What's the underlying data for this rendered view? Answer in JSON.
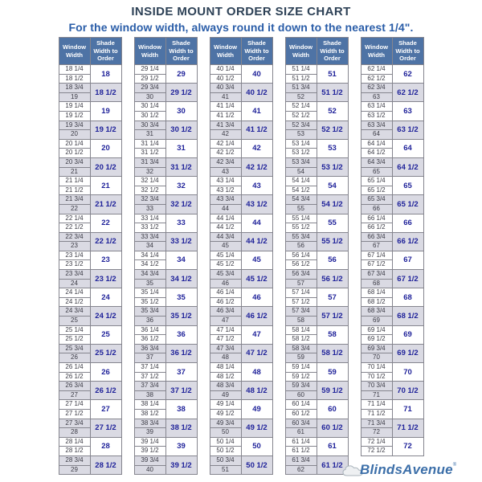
{
  "title": "INSIDE MOUNT ORDER SIZE CHART",
  "subtitle": "For the window width, always round it down to the nearest 1/4\".",
  "logo": {
    "text": "BlindsAvenue",
    "mark": "®"
  },
  "colors": {
    "title_text": "#2d4156",
    "subtitle_text": "#2a5da8",
    "header_bg": "#4e73a5",
    "header_text": "#ffffff",
    "alt_row_bg": "#dadae3",
    "window_text": "#3b3b45",
    "shade_text": "#20239a",
    "border": "#85858e",
    "logo_blue": "#3c6fa9"
  },
  "chart_data": {
    "type": "table",
    "title": "INSIDE MOUNT ORDER SIZE CHART",
    "subtitle": "For the window width, always round it down to the nearest 1/4\".",
    "col_headers": [
      "Window Width",
      "Shade Width to Order"
    ],
    "layout": "5 column groups; each shade value spans two window-width rows; pairs alternate white / lavender-gray shading",
    "groups": [
      {
        "pairs": [
          [
            "18 1/4",
            "18 1/2",
            "18"
          ],
          [
            "18 3/4",
            "19",
            "18 1/2"
          ],
          [
            "19 1/4",
            "19 1/2",
            "19"
          ],
          [
            "19 3/4",
            "20",
            "19 1/2"
          ],
          [
            "20 1/4",
            "20 1/2",
            "20"
          ],
          [
            "20 3/4",
            "21",
            "20 1/2"
          ],
          [
            "21 1/4",
            "21 1/2",
            "21"
          ],
          [
            "21 3/4",
            "22",
            "21 1/2"
          ],
          [
            "22 1/4",
            "22 1/2",
            "22"
          ],
          [
            "22 3/4",
            "23",
            "22 1/2"
          ],
          [
            "23 1/4",
            "23 1/2",
            "23"
          ],
          [
            "23 3/4",
            "24",
            "23 1/2"
          ],
          [
            "24 1/4",
            "24 1/2",
            "24"
          ],
          [
            "24 3/4",
            "25",
            "24 1/2"
          ],
          [
            "25 1/4",
            "25 1/2",
            "25"
          ],
          [
            "25 3/4",
            "26",
            "25 1/2"
          ],
          [
            "26 1/4",
            "26 1/2",
            "26"
          ],
          [
            "26 3/4",
            "27",
            "26 1/2"
          ],
          [
            "27 1/4",
            "27 1/2",
            "27"
          ],
          [
            "27 3/4",
            "28",
            "27 1/2"
          ],
          [
            "28 1/4",
            "28 1/2",
            "28"
          ],
          [
            "28 3/4",
            "29",
            "28 1/2"
          ]
        ]
      },
      {
        "pairs": [
          [
            "29 1/4",
            "29 1/2",
            "29"
          ],
          [
            "29 3/4",
            "30",
            "29 1/2"
          ],
          [
            "30 1/4",
            "30 1/2",
            "30"
          ],
          [
            "30 3/4",
            "31",
            "30 1/2"
          ],
          [
            "31 1/4",
            "31 1/2",
            "31"
          ],
          [
            "31 3/4",
            "32",
            "31 1/2"
          ],
          [
            "32 1/4",
            "32 1/2",
            "32"
          ],
          [
            "32 3/4",
            "33",
            "32 1/2"
          ],
          [
            "33 1/4",
            "33 1/2",
            "33"
          ],
          [
            "33 3/4",
            "34",
            "33 1/2"
          ],
          [
            "34 1/4",
            "34 1/2",
            "34"
          ],
          [
            "34 3/4",
            "35",
            "34 1/2"
          ],
          [
            "35 1/4",
            "35 1/2",
            "35"
          ],
          [
            "35 3/4",
            "36",
            "35 1/2"
          ],
          [
            "36 1/4",
            "36 1/2",
            "36"
          ],
          [
            "36 3/4",
            "37",
            "36 1/2"
          ],
          [
            "37 1/4",
            "37 1/2",
            "37"
          ],
          [
            "37 3/4",
            "38",
            "37 1/2"
          ],
          [
            "38 1/4",
            "38 1/2",
            "38"
          ],
          [
            "38 3/4",
            "39",
            "38 1/2"
          ],
          [
            "39 1/4",
            "39 1/2",
            "39"
          ],
          [
            "39 3/4",
            "40",
            "39 1/2"
          ]
        ]
      },
      {
        "pairs": [
          [
            "40 1/4",
            "40 1/2",
            "40"
          ],
          [
            "40 3/4",
            "41",
            "40 1/2"
          ],
          [
            "41 1/4",
            "41 1/2",
            "41"
          ],
          [
            "41 3/4",
            "42",
            "41 1/2"
          ],
          [
            "42 1/4",
            "42 1/2",
            "42"
          ],
          [
            "42 3/4",
            "43",
            "42 1/2"
          ],
          [
            "43 1/4",
            "43 1/2",
            "43"
          ],
          [
            "43 3/4",
            "44",
            "43 1/2"
          ],
          [
            "44 1/4",
            "44 1/2",
            "44"
          ],
          [
            "44 3/4",
            "45",
            "44 1/2"
          ],
          [
            "45 1/4",
            "45 1/2",
            "45"
          ],
          [
            "45 3/4",
            "46",
            "45 1/2"
          ],
          [
            "46 1/4",
            "46 1/2",
            "46"
          ],
          [
            "46 3/4",
            "47",
            "46 1/2"
          ],
          [
            "47 1/4",
            "47 1/2",
            "47"
          ],
          [
            "47 3/4",
            "48",
            "47 1/2"
          ],
          [
            "48 1/4",
            "48 1/2",
            "48"
          ],
          [
            "48 3/4",
            "49",
            "48 1/2"
          ],
          [
            "49 1/4",
            "49 1/2",
            "49"
          ],
          [
            "49 3/4",
            "50",
            "49 1/2"
          ],
          [
            "50 1/4",
            "50 1/2",
            "50"
          ],
          [
            "50 3/4",
            "51",
            "50 1/2"
          ]
        ]
      },
      {
        "pairs": [
          [
            "51 1/4",
            "51 1/2",
            "51"
          ],
          [
            "51 3/4",
            "52",
            "51 1/2"
          ],
          [
            "52 1/4",
            "52 1/2",
            "52"
          ],
          [
            "52 3/4",
            "53",
            "52 1/2"
          ],
          [
            "53 1/4",
            "53 1/2",
            "53"
          ],
          [
            "53 3/4",
            "54",
            "53 1/2"
          ],
          [
            "54 1/4",
            "54 1/2",
            "54"
          ],
          [
            "54 3/4",
            "55",
            "54 1/2"
          ],
          [
            "55 1/4",
            "55 1/2",
            "55"
          ],
          [
            "55 3/4",
            "56",
            "55 1/2"
          ],
          [
            "56 1/4",
            "56 1/2",
            "56"
          ],
          [
            "56 3/4",
            "57",
            "56 1/2"
          ],
          [
            "57 1/4",
            "57 1/2",
            "57"
          ],
          [
            "57 3/4",
            "58",
            "57 1/2"
          ],
          [
            "58 1/4",
            "58 1/2",
            "58"
          ],
          [
            "58 3/4",
            "59",
            "58 1/2"
          ],
          [
            "59 1/4",
            "59 1/2",
            "59"
          ],
          [
            "59 3/4",
            "60",
            "59 1/2"
          ],
          [
            "60 1/4",
            "60 1/2",
            "60"
          ],
          [
            "60 3/4",
            "61",
            "60 1/2"
          ],
          [
            "61 1/4",
            "61 1/2",
            "61"
          ],
          [
            "61 3/4",
            "62",
            "61 1/2"
          ]
        ]
      },
      {
        "pairs": [
          [
            "62 1/4",
            "62 1/2",
            "62"
          ],
          [
            "62 3/4",
            "63",
            "62 1/2"
          ],
          [
            "63 1/4",
            "63 1/2",
            "63"
          ],
          [
            "63 3/4",
            "64",
            "63 1/2"
          ],
          [
            "64 1/4",
            "64 1/2",
            "64"
          ],
          [
            "64 3/4",
            "65",
            "64 1/2"
          ],
          [
            "65 1/4",
            "65 1/2",
            "65"
          ],
          [
            "65 3/4",
            "66",
            "65 1/2"
          ],
          [
            "66 1/4",
            "66 1/2",
            "66"
          ],
          [
            "66 3/4",
            "67",
            "66 1/2"
          ],
          [
            "67 1/4",
            "67 1/2",
            "67"
          ],
          [
            "67 3/4",
            "68",
            "67 1/2"
          ],
          [
            "68 1/4",
            "68 1/2",
            "68"
          ],
          [
            "68 3/4",
            "69",
            "68 1/2"
          ],
          [
            "69 1/4",
            "69 1/2",
            "69"
          ],
          [
            "69 3/4",
            "70",
            "69 1/2"
          ],
          [
            "70 1/4",
            "70 1/2",
            "70"
          ],
          [
            "70 3/4",
            "71",
            "70 1/2"
          ],
          [
            "71 1/4",
            "71 1/2",
            "71"
          ],
          [
            "71 3/4",
            "72",
            "71 1/2"
          ],
          [
            "72 1/4",
            "72 1/2",
            "72"
          ]
        ]
      }
    ]
  }
}
